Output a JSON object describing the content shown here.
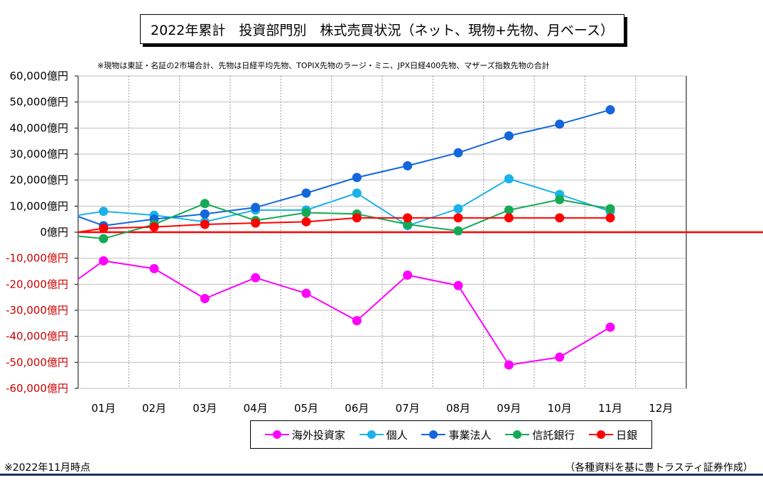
{
  "header": {
    "title": "2022年累計　投資部門別　株式売買状況（ネット、現物+先物、月ベース）",
    "note": "※現物は東証・名証の2市場合計、先物は日経平均先物、TOPIX先物のラージ・ミニ、JPX日経400先物、マザーズ指数先物の合計"
  },
  "footer": {
    "left": "※2022年11月時点",
    "right": "（各種資料を基に豊トラスティ証券作成）"
  },
  "chart_data": {
    "type": "line",
    "categories": [
      "01月",
      "02月",
      "03月",
      "04月",
      "05月",
      "06月",
      "07月",
      "08月",
      "09月",
      "10月",
      "11月",
      "12月"
    ],
    "y_ticks": [
      "60,000億円",
      "50,000億円",
      "40,000億円",
      "30,000億円",
      "20,000億円",
      "10,000億円",
      "0億円",
      "-10,000億円",
      "-20,000億円",
      "-30,000億円",
      "-40,000億円",
      "-50,000億円",
      "-60,000億円"
    ],
    "y_tick_values": [
      60000,
      50000,
      40000,
      30000,
      20000,
      10000,
      0,
      -10000,
      -20000,
      -30000,
      -40000,
      -50000,
      -60000
    ],
    "ylim": [
      -60000,
      60000
    ],
    "grid": true,
    "legend_position": "bottom",
    "positive_tick_color": "#000000",
    "negative_tick_color": "#cc0000",
    "zero_line_color": "#ff0000",
    "series": [
      {
        "name": "海外投資家",
        "color": "#ff00ff",
        "start": -18000,
        "values": [
          -11000,
          -14000,
          -25500,
          -17500,
          -23500,
          -34000,
          -16500,
          -20500,
          -51000,
          -48000,
          -36500,
          null
        ]
      },
      {
        "name": "個人",
        "color": "#1ab2e8",
        "start": 6500,
        "values": [
          8000,
          6500,
          4000,
          8500,
          8500,
          15000,
          2500,
          9000,
          20500,
          14500,
          8000,
          null
        ]
      },
      {
        "name": "事業法人",
        "color": "#1466dc",
        "start": 6000,
        "values": [
          2500,
          5000,
          7000,
          9500,
          15000,
          21000,
          25500,
          30500,
          37000,
          41500,
          47000,
          null
        ]
      },
      {
        "name": "信託銀行",
        "color": "#14aa55",
        "start": -1500,
        "values": [
          -2500,
          3000,
          11000,
          4500,
          7500,
          7000,
          3000,
          500,
          8500,
          12500,
          9000,
          null
        ]
      },
      {
        "name": "日銀",
        "color": "#ff0000",
        "start": 0,
        "values": [
          1500,
          2000,
          3000,
          3500,
          4000,
          5500,
          5500,
          5500,
          5500,
          5500,
          5500,
          null
        ]
      }
    ]
  }
}
